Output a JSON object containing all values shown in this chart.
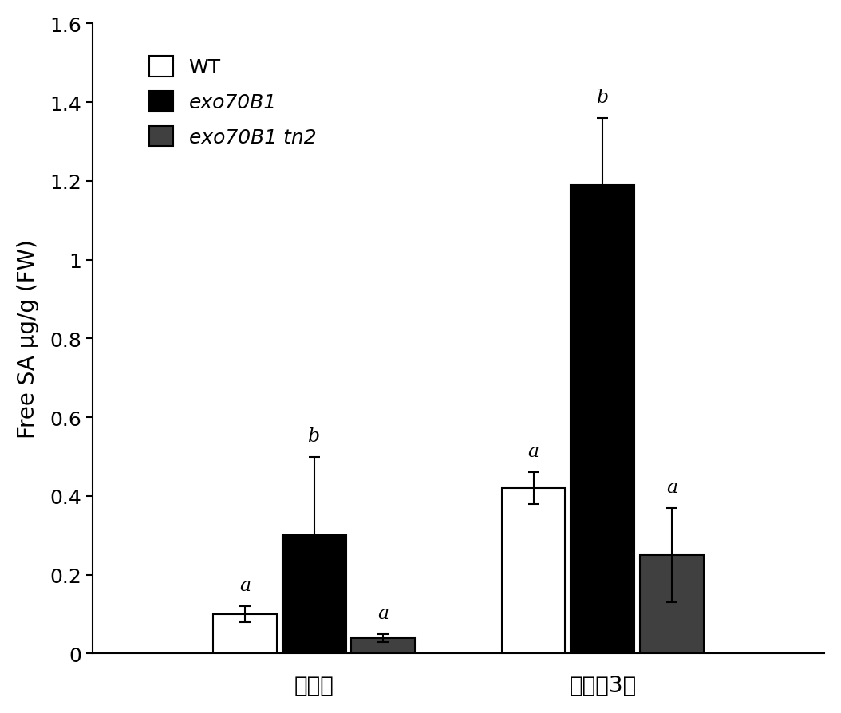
{
  "groups": [
    "未接菌",
    "接菌后3天"
  ],
  "bar_labels": [
    "WT",
    "exo70B1",
    "exo70B1 tn2"
  ],
  "bar_colors": [
    "white",
    "black",
    "#404040"
  ],
  "bar_edgecolors": [
    "black",
    "black",
    "black"
  ],
  "bar_hatches": [
    null,
    null,
    "==="
  ],
  "values": [
    [
      0.1,
      0.3,
      0.04
    ],
    [
      0.42,
      1.19,
      0.25
    ]
  ],
  "errors": [
    [
      0.02,
      0.2,
      0.01
    ],
    [
      0.04,
      0.17,
      0.12
    ]
  ],
  "significance": [
    [
      "a",
      "b",
      "a"
    ],
    [
      "a",
      "b",
      "a"
    ]
  ],
  "ylabel": "Free SA μg/g (FW)",
  "ylim": [
    0,
    1.6
  ],
  "yticks": [
    0.0,
    0.2,
    0.4,
    0.6,
    0.8,
    1.0,
    1.2,
    1.4,
    1.6
  ],
  "ytick_labels": [
    "0",
    "0.2",
    "0.4",
    "0.6",
    "0.8",
    "1",
    "1.2",
    "1.4",
    "1.6"
  ],
  "bar_width": 0.12,
  "group_centers": [
    0.25,
    0.75
  ],
  "figsize": [
    10.54,
    8.95
  ],
  "dpi": 100,
  "background_color": "white",
  "font_size_axis_label": 20,
  "font_size_tick": 18,
  "font_size_legend": 18,
  "font_size_sig": 17,
  "font_size_xlabel": 20
}
